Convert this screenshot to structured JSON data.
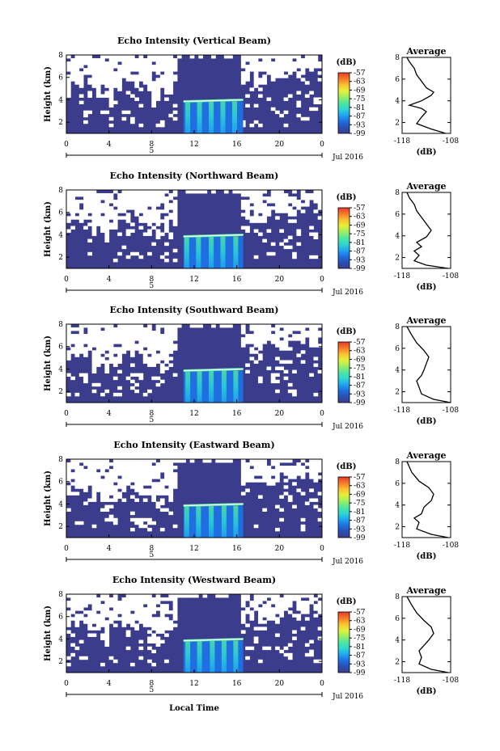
{
  "colors": {
    "background_echo": "#3b3d8c",
    "no_data": "#ffffff",
    "colormap": [
      "#3b3d8c",
      "#2a4fb5",
      "#1f6fe0",
      "#1fa6f0",
      "#2fd7d0",
      "#4fe6a0",
      "#9bef60",
      "#e6f03a",
      "#fbc12f",
      "#f57a2a",
      "#e83a2a"
    ]
  },
  "local_time_label": "Local Time",
  "chart_data": [
    {
      "type": "heatmap",
      "title": "Echo Intensity (Vertical Beam)",
      "ylabel": "Height (km)",
      "yticks": [
        "2",
        "4",
        "6",
        "8"
      ],
      "ylim": [
        1,
        8
      ],
      "xticks": [
        "0",
        "4",
        "8",
        "12",
        "16",
        "20",
        "0"
      ],
      "xlim": [
        0,
        24
      ],
      "date_day": "5",
      "date_label": "Jul 2016",
      "colorbar": {
        "unit": "(dB)",
        "ticks": [
          "-57",
          "-63",
          "-69",
          "-75",
          "-81",
          "-87",
          "-93",
          "-99"
        ],
        "range": [
          -99,
          -57
        ]
      },
      "layer_height_km": 3.85,
      "peak_hours": [
        11.4,
        12.5,
        13.6,
        14.7,
        15.8
      ],
      "average": {
        "title": "Average",
        "xlabel": "(dB)",
        "xticks": [
          "-118",
          "-108"
        ],
        "xlim": [
          -118,
          -108
        ],
        "yticks": [
          "2",
          "4",
          "6",
          "8"
        ],
        "profile": [
          [
            -109.0,
            1.0
          ],
          [
            -112.0,
            1.4
          ],
          [
            -115.0,
            1.9
          ],
          [
            -114.0,
            2.5
          ],
          [
            -113.0,
            3.0
          ],
          [
            -114.0,
            3.3
          ],
          [
            -116.5,
            3.6
          ],
          [
            -114.0,
            4.0
          ],
          [
            -112.0,
            4.5
          ],
          [
            -111.5,
            4.8
          ],
          [
            -113.0,
            5.2
          ],
          [
            -114.0,
            5.8
          ],
          [
            -115.0,
            6.4
          ],
          [
            -115.5,
            7.0
          ],
          [
            -116.5,
            7.6
          ],
          [
            -117.0,
            8.0
          ]
        ]
      }
    },
    {
      "type": "heatmap",
      "title": "Echo Intensity (Northward Beam)",
      "ylabel": "Height (km)",
      "yticks": [
        "2",
        "4",
        "6",
        "8"
      ],
      "ylim": [
        1,
        8
      ],
      "xticks": [
        "0",
        "4",
        "8",
        "12",
        "16",
        "20",
        "0"
      ],
      "xlim": [
        0,
        24
      ],
      "date_day": "5",
      "date_label": "Jul 2016",
      "colorbar": {
        "unit": "(dB)",
        "ticks": [
          "-57",
          "-63",
          "-69",
          "-75",
          "-81",
          "-87",
          "-93",
          "-99"
        ],
        "range": [
          -99,
          -57
        ]
      },
      "layer_height_km": 3.85,
      "peak_hours": [
        11.3,
        12.4,
        13.6,
        14.7,
        15.9
      ],
      "average": {
        "title": "Average",
        "xlabel": "(dB)",
        "xticks": [
          "-118",
          "-108"
        ],
        "xlim": [
          -118,
          -108
        ],
        "yticks": [
          "2",
          "4",
          "6",
          "8"
        ],
        "profile": [
          [
            -108.5,
            1.0
          ],
          [
            -113.0,
            1.3
          ],
          [
            -115.5,
            1.7
          ],
          [
            -114.5,
            2.2
          ],
          [
            -115.5,
            2.6
          ],
          [
            -114.0,
            3.0
          ],
          [
            -115.0,
            3.4
          ],
          [
            -113.0,
            3.9
          ],
          [
            -112.0,
            4.5
          ],
          [
            -113.0,
            5.1
          ],
          [
            -114.0,
            5.7
          ],
          [
            -115.0,
            6.3
          ],
          [
            -115.5,
            6.9
          ],
          [
            -116.5,
            7.5
          ],
          [
            -117.0,
            8.0
          ]
        ]
      }
    },
    {
      "type": "heatmap",
      "title": "Echo Intensity (Southward Beam)",
      "ylabel": "Height (km)",
      "yticks": [
        "2",
        "4",
        "6",
        "8"
      ],
      "ylim": [
        1,
        8
      ],
      "xticks": [
        "0",
        "4",
        "8",
        "12",
        "16",
        "20",
        "0"
      ],
      "xlim": [
        0,
        24
      ],
      "date_day": "5",
      "date_label": "Jul 2016",
      "colorbar": {
        "unit": "(dB)",
        "ticks": [
          "-57",
          "-63",
          "-69",
          "-75",
          "-81",
          "-87",
          "-93",
          "-99"
        ],
        "range": [
          -99,
          -57
        ]
      },
      "layer_height_km": 3.85,
      "peak_hours": [
        11.4,
        12.5,
        13.6,
        14.8,
        15.9
      ],
      "average": {
        "title": "Average",
        "xlabel": "(dB)",
        "xticks": [
          "-118",
          "-108"
        ],
        "xlim": [
          -118,
          -108
        ],
        "yticks": [
          "2",
          "4",
          "6",
          "8"
        ],
        "profile": [
          [
            -108.0,
            1.0
          ],
          [
            -111.5,
            1.3
          ],
          [
            -114.0,
            1.8
          ],
          [
            -114.5,
            2.4
          ],
          [
            -115.0,
            3.0
          ],
          [
            -114.0,
            3.5
          ],
          [
            -113.5,
            4.0
          ],
          [
            -113.0,
            4.6
          ],
          [
            -112.5,
            5.2
          ],
          [
            -113.5,
            5.8
          ],
          [
            -115.0,
            6.5
          ],
          [
            -116.0,
            7.2
          ],
          [
            -117.0,
            8.0
          ]
        ]
      }
    },
    {
      "type": "heatmap",
      "title": "Echo Intensity (Eastward Beam)",
      "ylabel": "Height (km)",
      "yticks": [
        "2",
        "4",
        "6",
        "8"
      ],
      "ylim": [
        1,
        8
      ],
      "xticks": [
        "0",
        "4",
        "8",
        "12",
        "16",
        "20",
        "0"
      ],
      "xlim": [
        0,
        24
      ],
      "date_day": "5",
      "date_label": "Jul 2016",
      "colorbar": {
        "unit": "(dB)",
        "ticks": [
          "-57",
          "-63",
          "-69",
          "-75",
          "-81",
          "-87",
          "-93",
          "-99"
        ],
        "range": [
          -99,
          -57
        ]
      },
      "layer_height_km": 3.85,
      "peak_hours": [
        11.3,
        12.4,
        13.6,
        14.8,
        15.9
      ],
      "average": {
        "title": "Average",
        "xlabel": "(dB)",
        "xticks": [
          "-118",
          "-108"
        ],
        "xlim": [
          -118,
          -108
        ],
        "yticks": [
          "2",
          "4",
          "6",
          "8"
        ],
        "profile": [
          [
            -108.5,
            1.0
          ],
          [
            -112.0,
            1.3
          ],
          [
            -115.0,
            1.8
          ],
          [
            -114.5,
            2.4
          ],
          [
            -115.5,
            2.8
          ],
          [
            -114.0,
            3.2
          ],
          [
            -113.5,
            3.8
          ],
          [
            -112.0,
            4.4
          ],
          [
            -111.5,
            5.0
          ],
          [
            -112.5,
            5.6
          ],
          [
            -114.5,
            6.2
          ],
          [
            -116.0,
            7.0
          ],
          [
            -117.0,
            8.0
          ]
        ]
      }
    },
    {
      "type": "heatmap",
      "title": "Echo Intensity (Westward Beam)",
      "ylabel": "Height (km)",
      "yticks": [
        "2",
        "4",
        "6",
        "8"
      ],
      "ylim": [
        1,
        8
      ],
      "xticks": [
        "0",
        "4",
        "8",
        "12",
        "16",
        "20",
        "0"
      ],
      "xlim": [
        0,
        24
      ],
      "date_day": "5",
      "date_label": "Jul 2016",
      "colorbar": {
        "unit": "(dB)",
        "ticks": [
          "-57",
          "-63",
          "-69",
          "-75",
          "-81",
          "-87",
          "-93",
          "-99"
        ],
        "range": [
          -99,
          -57
        ]
      },
      "layer_height_km": 3.85,
      "peak_hours": [
        11.4,
        12.5,
        13.7,
        14.8,
        15.9
      ],
      "average": {
        "title": "Average",
        "xlabel": "(dB)",
        "xticks": [
          "-118",
          "-108"
        ],
        "xlim": [
          -118,
          -108
        ],
        "yticks": [
          "2",
          "4",
          "6",
          "8"
        ],
        "profile": [
          [
            -108.5,
            1.0
          ],
          [
            -112.0,
            1.3
          ],
          [
            -114.5,
            1.8
          ],
          [
            -114.0,
            2.4
          ],
          [
            -114.5,
            3.0
          ],
          [
            -113.5,
            3.5
          ],
          [
            -112.5,
            4.0
          ],
          [
            -111.5,
            4.6
          ],
          [
            -112.0,
            5.2
          ],
          [
            -113.5,
            5.8
          ],
          [
            -115.0,
            6.5
          ],
          [
            -116.0,
            7.2
          ],
          [
            -117.0,
            8.0
          ]
        ]
      }
    }
  ]
}
